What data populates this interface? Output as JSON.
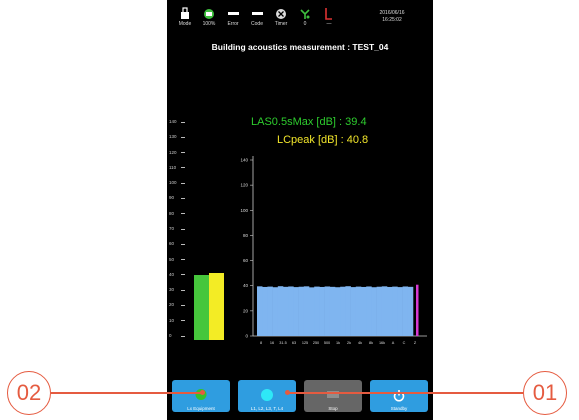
{
  "status": {
    "mode_label": "Mode",
    "battery_label": "100%",
    "error_label": "Error",
    "code_label": "Code",
    "timer_label": "Timer",
    "signal_label": "0",
    "level_label": "—",
    "date": "2016/06/16",
    "time": "16:25:02"
  },
  "title": "Building acoustics measurement : TEST_04",
  "readouts": {
    "las_max": "LAS0.5sMax [dB] : 39.4",
    "lc_peak": "LCpeak [dB] : 40.8"
  },
  "level_meter": {
    "scale": [
      "140",
      "130",
      "120",
      "110",
      "100",
      "90",
      "80",
      "70",
      "60",
      "50",
      "40",
      "30",
      "20",
      "10",
      "0"
    ],
    "green_level": 39.4,
    "yellow_level": 40.8,
    "colors": {
      "green": "#46c63c",
      "yellow": "#f3ec25"
    }
  },
  "chart_data": {
    "type": "bar",
    "ylim": [
      0,
      140
    ],
    "y_ticks": [
      "140",
      "120",
      "100",
      "80",
      "60",
      "40",
      "20",
      "0"
    ],
    "x_ticks": [
      "8",
      "16",
      "31.5",
      "63",
      "125",
      "250",
      "500",
      "1k",
      "2k",
      "4k",
      "8k",
      "16k",
      "A",
      "C",
      "Z"
    ],
    "values": [
      39.5,
      39.0,
      39.3,
      38.8,
      39.6,
      39.1,
      39.4,
      38.9,
      39.2,
      39.5,
      38.7,
      39.3,
      39.0,
      39.4,
      39.1,
      38.8,
      39.2,
      39.6,
      38.9,
      39.3,
      39.0,
      39.4,
      38.8,
      39.2,
      39.5,
      39.0,
      39.3,
      38.9,
      39.4,
      39.1
    ],
    "marker_value": 40.8,
    "colors": {
      "bars": "#7fb5f0",
      "marker": "#d63ad3",
      "axis": "#cccccc"
    }
  },
  "buttons": [
    {
      "label": "Lx Equipment",
      "icon": "green-dot-icon"
    },
    {
      "label": "L1, L2, L3, T, L4",
      "icon": "cyan-dot-icon"
    },
    {
      "label": "Stop",
      "icon": "stop-icon"
    },
    {
      "label": "Standby",
      "icon": "power-icon"
    }
  ],
  "callouts": {
    "left": "02",
    "right": "01",
    "color": "#e55b40"
  }
}
